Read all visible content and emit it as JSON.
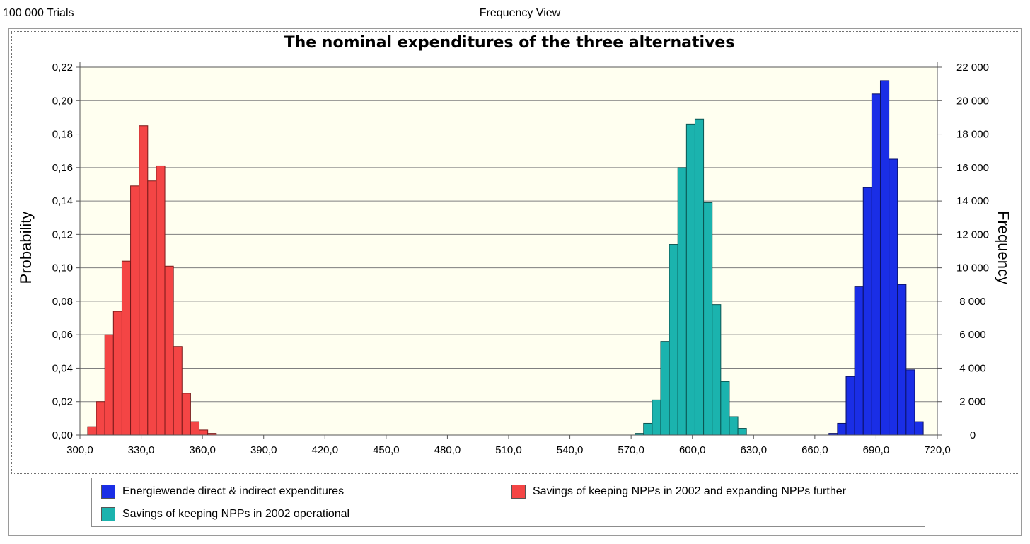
{
  "header": {
    "trials": "100 000 Trials",
    "view_title": "Frequency View"
  },
  "chart_data": {
    "type": "bar",
    "title": "The nominal expenditures of the three alternatives",
    "ylabel": "Probability",
    "y2label": "Frequency",
    "xlim": [
      300,
      720
    ],
    "ylim": [
      0,
      0.22
    ],
    "y2lim": [
      0,
      22000
    ],
    "bin_width": 4.2,
    "grid": true,
    "legend_position": "bottom",
    "colors": {
      "plot_bg": "#fffff0",
      "grid": "#7f7f7f"
    },
    "xticks": [
      {
        "value": 300,
        "label": "300,0"
      },
      {
        "value": 330,
        "label": "330,0"
      },
      {
        "value": 360,
        "label": "360,0"
      },
      {
        "value": 390,
        "label": "390,0"
      },
      {
        "value": 420,
        "label": "420,0"
      },
      {
        "value": 450,
        "label": "450,0"
      },
      {
        "value": 480,
        "label": "480,0"
      },
      {
        "value": 510,
        "label": "510,0"
      },
      {
        "value": 540,
        "label": "540,0"
      },
      {
        "value": 570,
        "label": "570,0"
      },
      {
        "value": 600,
        "label": "600,0"
      },
      {
        "value": 630,
        "label": "630,0"
      },
      {
        "value": 660,
        "label": "660,0"
      },
      {
        "value": 690,
        "label": "690,0"
      },
      {
        "value": 720,
        "label": "720,0"
      }
    ],
    "yticks": [
      {
        "value": 0,
        "label": "0,00"
      },
      {
        "value": 0.02,
        "label": "0,02"
      },
      {
        "value": 0.04,
        "label": "0,04"
      },
      {
        "value": 0.06,
        "label": "0,06"
      },
      {
        "value": 0.08,
        "label": "0,08"
      },
      {
        "value": 0.1,
        "label": "0,10"
      },
      {
        "value": 0.12,
        "label": "0,12"
      },
      {
        "value": 0.14,
        "label": "0,14"
      },
      {
        "value": 0.16,
        "label": "0,16"
      },
      {
        "value": 0.18,
        "label": "0,18"
      },
      {
        "value": 0.2,
        "label": "0,20"
      },
      {
        "value": 0.22,
        "label": "0,22"
      }
    ],
    "y2ticks": [
      {
        "value": 0,
        "label": "0"
      },
      {
        "value": 2000,
        "label": "2 000"
      },
      {
        "value": 4000,
        "label": "4 000"
      },
      {
        "value": 6000,
        "label": "6 000"
      },
      {
        "value": 8000,
        "label": "8 000"
      },
      {
        "value": 10000,
        "label": "10 000"
      },
      {
        "value": 12000,
        "label": "12 000"
      },
      {
        "value": 14000,
        "label": "14 000"
      },
      {
        "value": 16000,
        "label": "16 000"
      },
      {
        "value": 18000,
        "label": "18 000"
      },
      {
        "value": 20000,
        "label": "20 000"
      },
      {
        "value": 22000,
        "label": "22 000"
      }
    ],
    "series": [
      {
        "name": "Savings of keeping NPPs in 2002 and expanding NPPs further",
        "color": "#f44545",
        "edge": "#7a1a1a",
        "x": [
          305.9,
          310.1,
          314.3,
          318.5,
          322.7,
          326.9,
          331.1,
          335.3,
          339.5,
          343.7,
          347.9,
          352.1,
          356.3,
          360.5,
          364.7
        ],
        "values": [
          0.005,
          0.02,
          0.06,
          0.074,
          0.104,
          0.149,
          0.185,
          0.152,
          0.161,
          0.101,
          0.053,
          0.025,
          0.008,
          0.003,
          0.001
        ]
      },
      {
        "name": "Savings of keeping NPPs in 2002 operational",
        "color": "#1bb3ae",
        "edge": "#0b5552",
        "x": [
          574.0,
          578.2,
          582.4,
          586.6,
          590.8,
          595.0,
          599.2,
          603.4,
          607.6,
          611.8,
          616.0,
          620.2,
          624.4,
          628.6
        ],
        "values": [
          0.001,
          0.007,
          0.021,
          0.056,
          0.114,
          0.16,
          0.186,
          0.189,
          0.139,
          0.078,
          0.032,
          0.011,
          0.004,
          0.0
        ]
      },
      {
        "name": "Energiewende direct & indirect expenditures",
        "color": "#1a2ee6",
        "edge": "#0a1166",
        "x": [
          669.0,
          673.2,
          677.4,
          681.6,
          685.8,
          690.0,
          694.2,
          698.4,
          702.6,
          706.8,
          711.0,
          715.2
        ],
        "values": [
          0.001,
          0.007,
          0.035,
          0.089,
          0.148,
          0.204,
          0.212,
          0.165,
          0.09,
          0.039,
          0.008,
          0.0
        ]
      }
    ]
  },
  "legend": {
    "items": [
      {
        "label": "Energiewende direct & indirect expenditures",
        "color": "#1a2ee6"
      },
      {
        "label": "Savings of keeping NPPs in 2002 and expanding NPPs further",
        "color": "#f44545"
      },
      {
        "label": "Savings of keeping NPPs in 2002 operational",
        "color": "#1bb3ae"
      }
    ]
  }
}
